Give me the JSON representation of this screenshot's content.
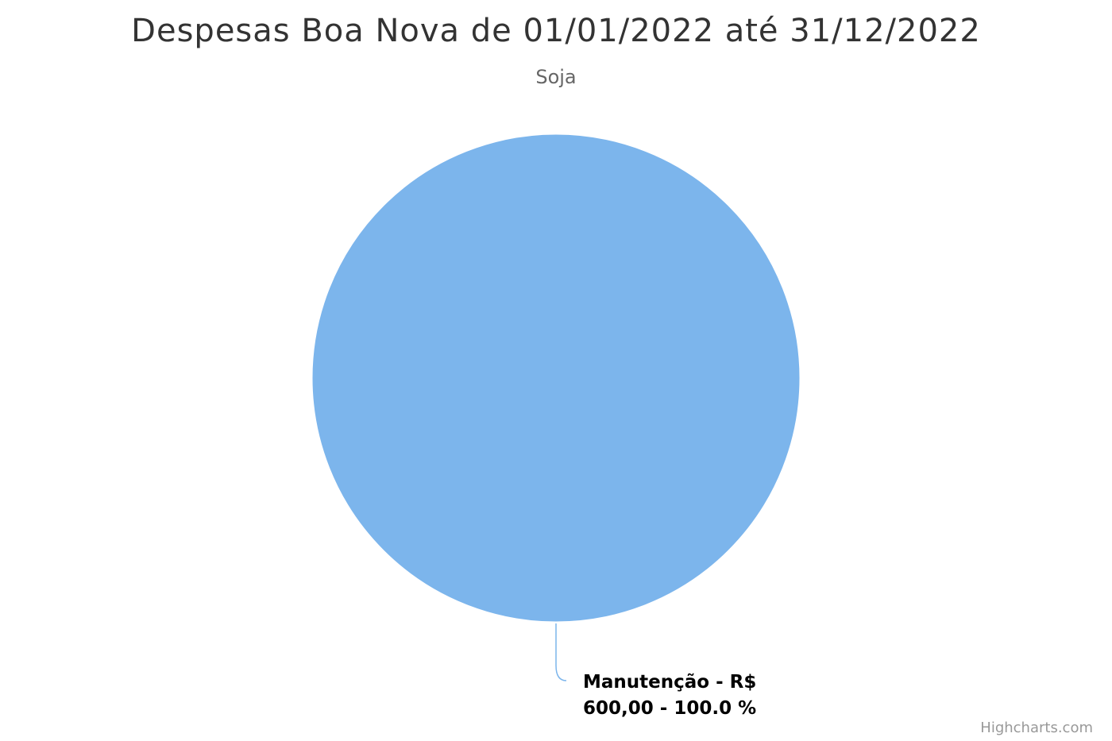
{
  "chart_data": {
    "type": "pie",
    "title": "Despesas Boa Nova de 01/01/2022 até 31/12/2022",
    "subtitle": "Soja",
    "series": [
      {
        "data": [
          {
            "name": "Manutenção",
            "value": 600.0,
            "percent": 100.0,
            "label_line1": "Manutenção - R$",
            "label_line2": "600,00 - 100.0 %",
            "color": "#7cb5ec"
          }
        ]
      }
    ]
  },
  "credits": "Highcharts.com"
}
